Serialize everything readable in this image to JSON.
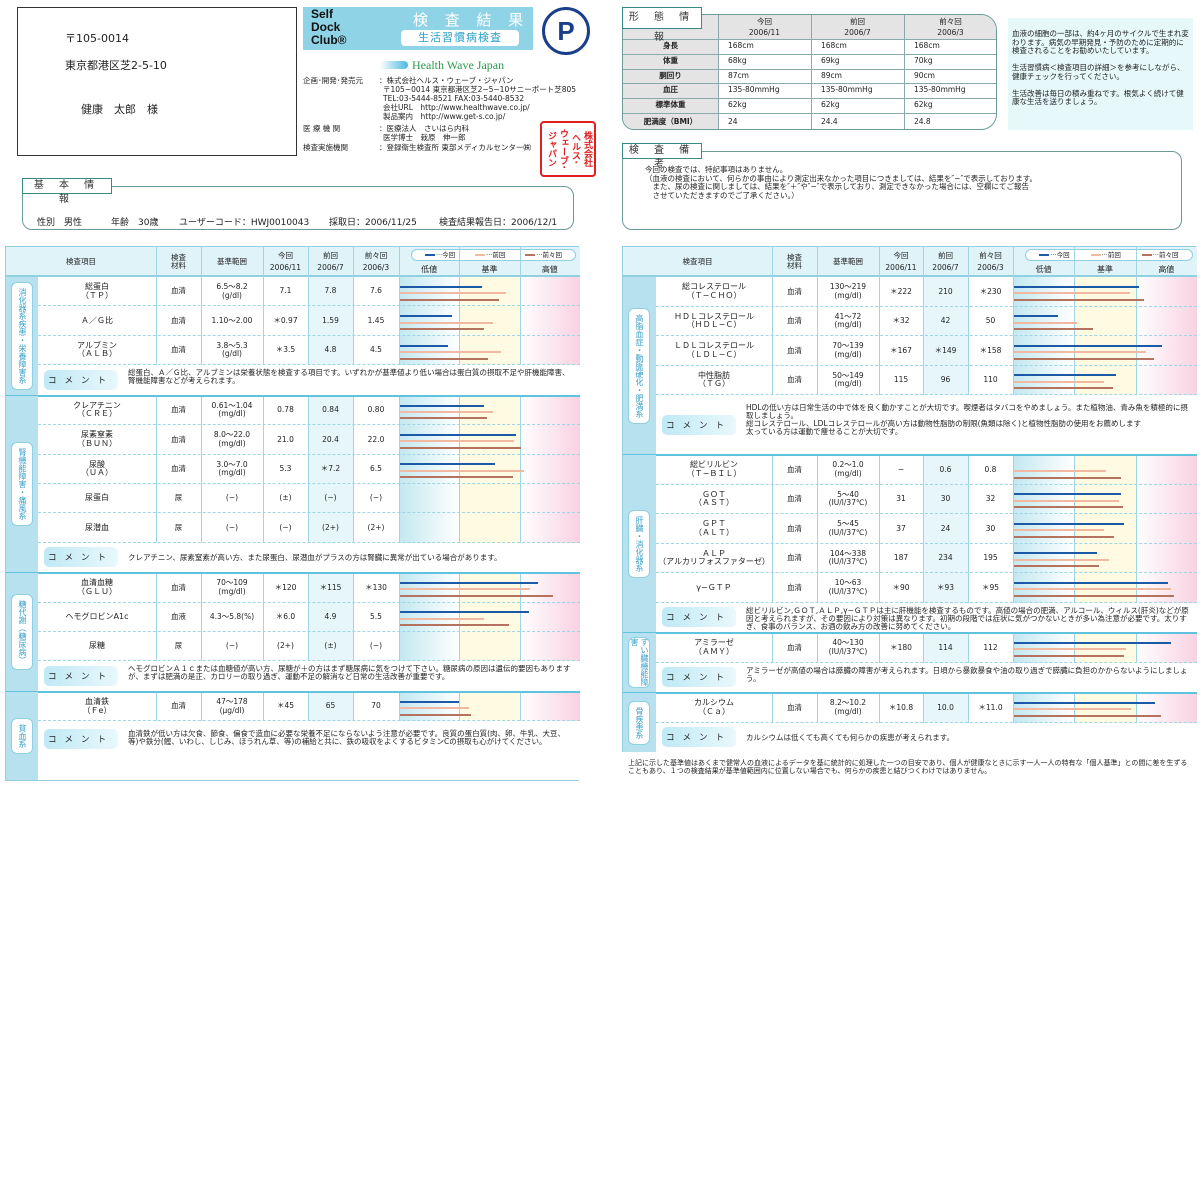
{
  "address": {
    "postal": "〒105-0014",
    "addr": "東京都港区芝2-5-10",
    "name": "健康　太郎　様"
  },
  "logo": {
    "brand_lines": [
      "Self",
      "Dock",
      "Club®"
    ],
    "title": "検 査 結 果",
    "subtitle": "生活習慣病検査",
    "pmark": "P",
    "partner": "Health Wave Japan",
    "stamp": "株式会社ヘルス・ウェーブ・ジャパン"
  },
  "issuer": [
    {
      "k": "企画･開発･発売元",
      "v": [
        "：株式会社ヘルス・ウェーブ・ジャパン",
        "〒105−0014 東京都港区芝2−5−10サニーポート芝805",
        "TEL:03-5444-8521 FAX:03-5440-8532",
        "会社URL　http://www.healthwave.co.jp/",
        "製品案内　http://www.get-s.co.jp/"
      ]
    },
    {
      "k": "医 療 機 関",
      "v": [
        "：医療法人　さいはら内科",
        "医学博士　栽原　伸一郎"
      ]
    },
    {
      "k": "検査実施機関",
      "v": [
        "：登録衛生検査所 東部メディカルセンター㈱"
      ]
    }
  ],
  "basic": {
    "label": "基 本 情 報",
    "sex": "性別　男性",
    "age": "年齢　30歳",
    "user_code": "ユーザーコード：HWJ0010043",
    "collected": "採取日：2006/11/25",
    "reported": "検査結果報告日：2006/12/1"
  },
  "body_info": {
    "label": "形 態 情 報",
    "columns": [
      [
        "今回",
        "2006/11"
      ],
      [
        "前回",
        "2006/7"
      ],
      [
        "前々回",
        "2006/3"
      ]
    ],
    "rows": [
      [
        "身長",
        "168cm",
        "168cm",
        "168cm"
      ],
      [
        "体重",
        "68kg",
        "69kg",
        "70kg"
      ],
      [
        "胴回り",
        "87cm",
        "89cm",
        "90cm"
      ],
      [
        "血圧",
        "135-80mmHg",
        "135-80mmHg",
        "135-80mmHg"
      ],
      [
        "標準体重",
        "62kg",
        "62kg",
        "62kg"
      ],
      [
        "肥満度（BMI）",
        "24",
        "24.4",
        "24.8"
      ]
    ]
  },
  "advice": [
    "血液の細胞の一部は、約4ヶ月のサイクルで生まれ変わります。病気の早期発見・予防のために定期的に検査されることをお勧めいたしています。",
    "生活習慣病＜検査項目の詳細＞を参考にしながら、健康チェックを行ってください。",
    "生活改善は毎日の積み重ねです。根気よく続けて健康な生活を送りましょう。"
  ],
  "remarks": {
    "label": "検 査 備 考",
    "lines": [
      "今回の検査では、特記事項はありません。",
      "（血液の検査において、何らかの事由により測定出来なかった項目につきましては、結果を″−″で表示しております。",
      "　また、尿の検査に関しましては、結果を″＋″や″−″で表示しており、測定できなかった場合には、空欄にてご報告",
      "　させていただきますのでご了承ください。）"
    ]
  },
  "table_header": {
    "item": "検査項目",
    "material": "検査材料",
    "range": "基準範囲",
    "now": "今回",
    "prev": "前回",
    "prev2": "前々回",
    "now_date": "2006/11",
    "prev_date": "2006/7",
    "prev2_date": "2006/3",
    "legend": [
      "今回",
      "前回",
      "前々回"
    ],
    "zones": [
      "低値",
      "基準",
      "高値"
    ],
    "comment": "コメント"
  },
  "colors": {
    "now": "#1c5aa8",
    "prev": "#f2b9a2",
    "prev2": "#b5735f"
  },
  "left_sections": [
    {
      "category": "消化器系疾患・栄養障害系",
      "rows": [
        {
          "item": "総蛋白",
          "code": "（ＴＰ）",
          "mat": "血清",
          "range": "6.5〜8.2",
          "unit": "(g/dl)",
          "v": [
            "7.1",
            "7.8",
            "7.6"
          ],
          "lo": 6.5,
          "hi": 8.2,
          "n": [
            7.1,
            7.8,
            7.6
          ]
        },
        {
          "item": "Ａ／Ｇ比",
          "code": "",
          "mat": "血清",
          "range": "1.10〜2.00",
          "unit": "",
          "v": [
            "＊0.97",
            "1.59",
            "1.45"
          ],
          "lo": 1.1,
          "hi": 2.0,
          "n": [
            0.97,
            1.59,
            1.45
          ]
        },
        {
          "item": "アルブミン",
          "code": "（ＡＬＢ）",
          "mat": "血清",
          "range": "3.8〜5.3",
          "unit": "(g/dl)",
          "v": [
            "＊3.5",
            "4.8",
            "4.5"
          ],
          "lo": 3.8,
          "hi": 5.3,
          "n": [
            3.5,
            4.8,
            4.5
          ]
        }
      ],
      "comment": "総蛋白、Ａ／Ｇ比、アルブミンは栄養状態を検査する項目です。いずれかが基準値より低い場合は蛋白質の摂取不足や肝機能障害、腎機能障害などが考えられます。"
    },
    {
      "category": "腎機能障害・痛風系",
      "rows": [
        {
          "item": "クレアチニン",
          "code": "（ＣＲＥ）",
          "mat": "血清",
          "range": "0.61〜1.04",
          "unit": "(mg/dl)",
          "v": [
            "0.78",
            "0.84",
            "0.80"
          ],
          "lo": 0.61,
          "hi": 1.04,
          "n": [
            0.78,
            0.84,
            0.8
          ]
        },
        {
          "item": "尿素窒素",
          "code": "（ＢＵＮ）",
          "mat": "血清",
          "range": "8.0〜22.0",
          "unit": "(mg/dl)",
          "v": [
            "21.0",
            "20.4",
            "22.0"
          ],
          "lo": 8,
          "hi": 22,
          "n": [
            21.0,
            20.4,
            22.0
          ]
        },
        {
          "item": "尿酸",
          "code": "（ＵＡ）",
          "mat": "血清",
          "range": "3.0〜7.0",
          "unit": "(mg/dl)",
          "v": [
            "5.3",
            "＊7.2",
            "6.5"
          ],
          "lo": 3,
          "hi": 7,
          "n": [
            5.3,
            7.2,
            6.5
          ]
        },
        {
          "item": "尿蛋白",
          "code": "",
          "mat": "尿",
          "range": "(−)",
          "unit": "",
          "v": [
            "(±)",
            "(−)",
            "(−)"
          ]
        },
        {
          "item": "尿潜血",
          "code": "",
          "mat": "尿",
          "range": "(−)",
          "unit": "",
          "v": [
            "(−)",
            "(2+)",
            "(2+)"
          ]
        }
      ],
      "comment": "クレアチニン、尿素窒素が高い方、また尿蛋白、尿潜血がプラスの方は腎臓に異常が出ている場合があります。"
    },
    {
      "category": "糖代謝（糖尿病）",
      "rows": [
        {
          "item": "血清血糖",
          "code": "（ＧＬＵ）",
          "mat": "血清",
          "range": "70〜109",
          "unit": "(mg/dl)",
          "v": [
            "＊120",
            "＊115",
            "＊130"
          ],
          "lo": 70,
          "hi": 109,
          "n": [
            120,
            115,
            130
          ]
        },
        {
          "item": "ヘモグロビンA1c",
          "code": "",
          "mat": "血液",
          "range": "4.3〜5.8(%)",
          "unit": "",
          "v": [
            "＊6.0",
            "4.9",
            "5.5"
          ],
          "lo": 4.3,
          "hi": 5.8,
          "n": [
            6.0,
            4.9,
            5.5
          ]
        },
        {
          "item": "尿糖",
          "code": "",
          "mat": "尿",
          "range": "(−)",
          "unit": "",
          "v": [
            "(2+)",
            "(±)",
            "(−)"
          ]
        }
      ],
      "comment": "ヘモグロビンＡ１ｃまたは血糖値が高い方、尿糖が＋の方はまず糖尿病に気をつけて下さい。糖尿病の原因は遺伝的要因もありますが、まずは肥満の是正、カロリーの取り過ぎ、運動不足の解消など日常の生活改善が重要です。"
    },
    {
      "category": "貧血系",
      "rows": [
        {
          "item": "血清鉄",
          "code": "（Ｆe）",
          "mat": "血清",
          "range": "47〜178",
          "unit": "(μg/dl)",
          "v": [
            "＊45",
            "65",
            "70"
          ],
          "lo": 47,
          "hi": 178,
          "n": [
            45,
            65,
            70
          ]
        }
      ],
      "comment": "血清鉄が低い方は欠食、節食、偏食で造血に必要な栄養不足にならないよう注意が必要です。良質の蛋白質(肉、卵、牛乳、大豆、等)や鉄分(鰹、いわし、しじみ、ほうれん草、等)の補給と共に、鉄の吸収をよくするビタミンCの摂取も心がけてください。",
      "tall": true
    }
  ],
  "right_sections": [
    {
      "category": "高脂血症・動脈硬化・肥満系",
      "rows": [
        {
          "item": "総コレステロール",
          "code": "（Ｔ−ＣＨＯ）",
          "mat": "血清",
          "range": "130〜219",
          "unit": "(mg/dl)",
          "v": [
            "＊222",
            "210",
            "＊230"
          ],
          "lo": 130,
          "hi": 219,
          "n": [
            222,
            210,
            230
          ]
        },
        {
          "item": "ＨＤＬコレステロール",
          "code": "（ＨＤＬ−Ｃ）",
          "mat": "血清",
          "range": "41〜72",
          "unit": "(mg/dl)",
          "v": [
            "＊32",
            "42",
            "50"
          ],
          "lo": 41,
          "hi": 72,
          "n": [
            32,
            42,
            50
          ]
        },
        {
          "item": "ＬＤＬコレステロール",
          "code": "（ＬＤＬ−Ｃ）",
          "mat": "血清",
          "range": "70〜139",
          "unit": "(mg/dl)",
          "v": [
            "＊167",
            "＊149",
            "＊158"
          ],
          "lo": 70,
          "hi": 139,
          "n": [
            167,
            149,
            158
          ]
        },
        {
          "item": "中性脂肪",
          "code": "（ＴＧ）",
          "mat": "血清",
          "range": "50〜149",
          "unit": "(mg/dl)",
          "v": [
            "115",
            "96",
            "110"
          ],
          "lo": 50,
          "hi": 149,
          "n": [
            115,
            96,
            110
          ]
        }
      ],
      "comment": "HDLの低い方は日常生活の中で体を良く動かすことが大切です。喫煙者はタバコをやめましょう。また植物油、青み魚を積極的に摂取しましょう。\n総コレステロール、LDLコレステロールが高い方は動物性脂肪の制限(魚類は除く)と植物性脂肪の使用をお薦めします\n太っている方は運動で痩せることが大切です。",
      "tall": true
    },
    {
      "category": "肝臓・消化器系",
      "rows": [
        {
          "item": "総ビリルビン",
          "code": "（Ｔ−ＢＩＬ）",
          "mat": "血清",
          "range": "0.2〜1.0",
          "unit": "(mg/dl)",
          "v": [
            "−",
            "0.6",
            "0.8"
          ],
          "lo": 0.2,
          "hi": 1.0,
          "n": [
            null,
            0.6,
            0.8
          ]
        },
        {
          "item": "ＧＯＴ",
          "code": "（ＡＳＴ）",
          "mat": "血清",
          "range": "5〜40",
          "unit": "(IU/l/37℃)",
          "v": [
            "31",
            "30",
            "32"
          ],
          "lo": 5,
          "hi": 40,
          "n": [
            31,
            30,
            32
          ]
        },
        {
          "item": "ＧＰＴ",
          "code": "（ＡＬＴ）",
          "mat": "血清",
          "range": "5〜45",
          "unit": "(IU/l/37℃)",
          "v": [
            "37",
            "24",
            "30"
          ],
          "lo": 5,
          "hi": 45,
          "n": [
            37,
            24,
            30
          ]
        },
        {
          "item": "ＡＬＰ",
          "code": "（アルカリフォスファターゼ）",
          "mat": "血清",
          "range": "104〜338",
          "unit": "(IU/l/37℃)",
          "v": [
            "187",
            "234",
            "195"
          ],
          "lo": 104,
          "hi": 338,
          "n": [
            187,
            234,
            195
          ]
        },
        {
          "item": "γ−ＧＴＰ",
          "code": "",
          "mat": "血清",
          "range": "10〜63",
          "unit": "(IU/l/37℃)",
          "v": [
            "＊90",
            "＊93",
            "＊95"
          ],
          "lo": 10,
          "hi": 63,
          "n": [
            90,
            93,
            95
          ]
        }
      ],
      "comment": "総ビリルビン,ＧＯＴ,ＡＬＰ,γ−ＧＴＰは主に肝機能を検査するものです。高値の場合の肥満、アルコール、ウィルス(肝炎)などが原因と考えられますが、その要因により対策は異なります。初期の段階では症状に気がつかないときが多い為注意が必要です。太りすぎ、食事のバランス、お酒の飲み方の改善に努めてください。"
    },
    {
      "category": "すい臓機能障害",
      "rows": [
        {
          "item": "アミラーゼ",
          "code": "（ＡＭＹ）",
          "mat": "血清",
          "range": "40〜130",
          "unit": "(IU/l/37℃)",
          "v": [
            "＊180",
            "114",
            "112"
          ],
          "lo": 40,
          "hi": 130,
          "n": [
            180,
            114,
            112
          ]
        }
      ],
      "comment": "アミラーゼが高値の場合は膵臓の障害が考えられます。日頃から暴飲暴食や油の取り過ぎで膵臓に負担のかからないようにしましょう。"
    },
    {
      "category": "骨疾患系",
      "rows": [
        {
          "item": "カルシウム",
          "code": "（Ｃａ）",
          "mat": "血清",
          "range": "8.2〜10.2",
          "unit": "(mg/dl)",
          "v": [
            "＊10.8",
            "10.0",
            "＊11.0"
          ],
          "lo": 8.2,
          "hi": 10.2,
          "n": [
            10.8,
            10.0,
            11.0
          ]
        }
      ],
      "comment": "カルシウムは低くても高くても何らかの疾患が考えられます。"
    }
  ],
  "footnote": "上記に示した基準値はあくまで健常人の血液によるデータを基に統計的に処理した一つの目安であり、個人が健康なときに示す一人一人の特有な「個人基準」との間に差を生ずることもあり、１つの検査結果が基準値範囲内に位置しない場合でも、何らかの疾患と結びつくわけではありません。"
}
